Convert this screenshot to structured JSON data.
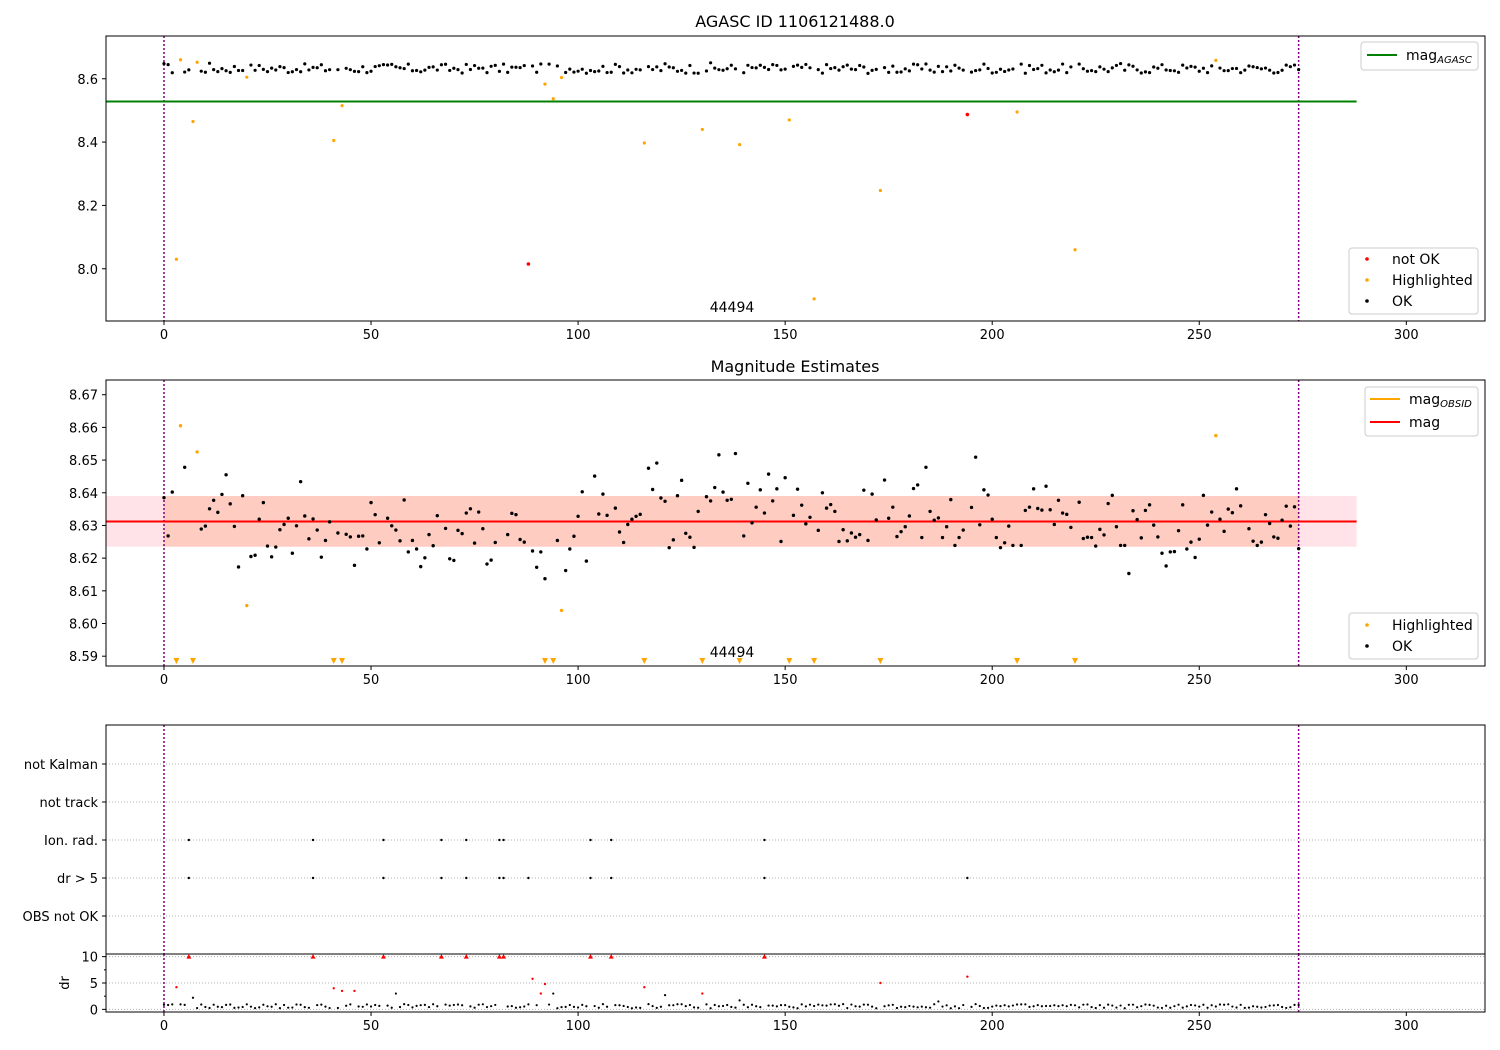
{
  "colors": {
    "ok": "#000000",
    "highlighted": "#ffa500",
    "not_ok": "#ff0000",
    "agasc_line": "#008000",
    "obsid_line": "#ffa500",
    "mag_line": "#ff0000",
    "band_outer": "#ffc0cb",
    "band_inner": "#ffa07a",
    "vline": "#800080",
    "grid": "#b0b0b0"
  },
  "chart_data": [
    {
      "type": "scatter",
      "title": "AGASC ID 1106121488.0",
      "xlim": [
        -14,
        319
      ],
      "ylim": [
        7.835,
        8.735
      ],
      "xticks": [
        0,
        50,
        100,
        150,
        200,
        250,
        300
      ],
      "yticks": [
        "8.0",
        "8.2",
        "8.4",
        "8.6"
      ],
      "annotation": {
        "text": "44494",
        "x": 137,
        "y": 7.87
      },
      "vlines": [
        0,
        274
      ],
      "hline": {
        "name": "mag_AGASC",
        "value": 8.528,
        "x_range": [
          -14,
          288
        ]
      },
      "ok_band": [
        8.61,
        8.65
      ],
      "highlighted_points": [
        [
          3,
          8.03
        ],
        [
          4,
          8.66
        ],
        [
          7,
          8.465
        ],
        [
          8,
          8.652
        ],
        [
          20,
          8.605
        ],
        [
          41,
          8.405
        ],
        [
          43,
          8.515
        ],
        [
          92,
          8.583
        ],
        [
          94,
          8.537
        ],
        [
          96,
          8.604
        ],
        [
          116,
          8.397
        ],
        [
          130,
          8.44
        ],
        [
          139,
          8.392
        ],
        [
          151,
          8.47
        ],
        [
          157,
          7.905
        ],
        [
          173,
          8.247
        ],
        [
          206,
          8.495
        ],
        [
          220,
          8.06
        ],
        [
          254,
          8.658
        ]
      ],
      "not_ok_points": [
        [
          88,
          8.015
        ],
        [
          194,
          8.487
        ]
      ],
      "legend_main": [
        {
          "label": "mag",
          "sub": "AGASC"
        }
      ],
      "legend_points": [
        {
          "label": "not OK"
        },
        {
          "label": "Highlighted"
        },
        {
          "label": "OK"
        }
      ]
    },
    {
      "type": "scatter",
      "title": "Magnitude Estimates",
      "xlim": [
        -14,
        319
      ],
      "ylim": [
        8.587,
        8.6745
      ],
      "xticks": [
        0,
        50,
        100,
        150,
        200,
        250,
        300
      ],
      "yticks": [
        "8.59",
        "8.60",
        "8.61",
        "8.62",
        "8.63",
        "8.64",
        "8.65",
        "8.66",
        "8.67"
      ],
      "annotation": {
        "text": "44494",
        "x": 137,
        "y": 8.5885
      },
      "vlines": [
        0,
        274
      ],
      "mag_line": {
        "value": 8.6312,
        "x_range": [
          -14,
          288
        ]
      },
      "band_outer": {
        "low": 8.6235,
        "high": 8.639,
        "x_range": [
          -14,
          288
        ]
      },
      "band_inner": {
        "low": 8.6235,
        "high": 8.639,
        "x_range": [
          0,
          274
        ]
      },
      "ok_points": [
        [
          0,
          8.6385
        ],
        [
          1,
          8.6268
        ],
        [
          2,
          8.6402
        ],
        [
          5,
          8.6478
        ],
        [
          9,
          8.6289
        ],
        [
          10,
          8.6298
        ],
        [
          11,
          8.6351
        ],
        [
          12,
          8.6377
        ],
        [
          13,
          8.634
        ],
        [
          14,
          8.6395
        ],
        [
          15,
          8.6455
        ],
        [
          16,
          8.6366
        ],
        [
          17,
          8.6297
        ],
        [
          18,
          8.6173
        ],
        [
          19,
          8.6391
        ],
        [
          21,
          8.6205
        ],
        [
          22,
          8.6209
        ],
        [
          23,
          8.6319
        ],
        [
          24,
          8.637
        ],
        [
          25,
          8.6237
        ],
        [
          26,
          8.6204
        ],
        [
          27,
          8.6234
        ],
        [
          28,
          8.6287
        ],
        [
          29,
          8.6303
        ],
        [
          30,
          8.6322
        ],
        [
          31,
          8.6215
        ],
        [
          32,
          8.6299
        ],
        [
          33,
          8.6434
        ],
        [
          34,
          8.6329
        ],
        [
          35,
          8.6259
        ],
        [
          36,
          8.632
        ],
        [
          37,
          8.6286
        ],
        [
          38,
          8.6203
        ],
        [
          39,
          8.6254
        ],
        [
          40,
          8.6311
        ],
        [
          42,
          8.6277
        ],
        [
          44,
          8.6273
        ],
        [
          45,
          8.6265
        ],
        [
          46,
          8.6178
        ],
        [
          47,
          8.6267
        ],
        [
          48,
          8.6268
        ],
        [
          49,
          8.6228
        ],
        [
          50,
          8.637
        ],
        [
          51,
          8.6333
        ],
        [
          52,
          8.6247
        ],
        [
          54,
          8.6322
        ],
        [
          55,
          8.6299
        ],
        [
          56,
          8.6286
        ],
        [
          57,
          8.6253
        ],
        [
          58,
          8.6378
        ],
        [
          59,
          8.6219
        ],
        [
          60,
          8.6254
        ],
        [
          61,
          8.6228
        ],
        [
          62,
          8.6174
        ],
        [
          63,
          8.6201
        ],
        [
          64,
          8.6272
        ],
        [
          65,
          8.6238
        ],
        [
          66,
          8.633
        ],
        [
          68,
          8.6291
        ],
        [
          69,
          8.6198
        ],
        [
          70,
          8.6193
        ],
        [
          71,
          8.6285
        ],
        [
          72,
          8.6275
        ],
        [
          73,
          8.6338
        ],
        [
          74,
          8.6351
        ],
        [
          75,
          8.6246
        ],
        [
          76,
          8.6341
        ],
        [
          77,
          8.629
        ],
        [
          78,
          8.6182
        ],
        [
          79,
          8.6194
        ],
        [
          80,
          8.6248
        ],
        [
          83,
          8.6272
        ],
        [
          84,
          8.6337
        ],
        [
          85,
          8.6333
        ],
        [
          86,
          8.6257
        ],
        [
          87,
          8.6249
        ],
        [
          89,
          8.6222
        ],
        [
          90,
          8.6172
        ],
        [
          91,
          8.6219
        ],
        [
          92,
          8.6137
        ],
        [
          95,
          8.6254
        ],
        [
          97,
          8.6162
        ],
        [
          98,
          8.6228
        ],
        [
          99,
          8.6267
        ],
        [
          100,
          8.6328
        ],
        [
          101,
          8.6403
        ],
        [
          102,
          8.6191
        ],
        [
          104,
          8.6451
        ],
        [
          105,
          8.6335
        ],
        [
          106,
          8.6396
        ],
        [
          107,
          8.6331
        ],
        [
          109,
          8.6353
        ],
        [
          110,
          8.628
        ],
        [
          111,
          8.6248
        ],
        [
          112,
          8.6303
        ],
        [
          113,
          8.6319
        ],
        [
          114,
          8.6328
        ],
        [
          115,
          8.6334
        ],
        [
          117,
          8.6475
        ],
        [
          118,
          8.641
        ],
        [
          119,
          8.6491
        ],
        [
          120,
          8.6384
        ],
        [
          121,
          8.6374
        ],
        [
          122,
          8.6232
        ],
        [
          123,
          8.6256
        ],
        [
          124,
          8.6391
        ],
        [
          125,
          8.6438
        ],
        [
          126,
          8.6276
        ],
        [
          127,
          8.6264
        ],
        [
          128,
          8.6233
        ],
        [
          129,
          8.6343
        ],
        [
          131,
          8.6388
        ],
        [
          132,
          8.6375
        ],
        [
          133,
          8.6416
        ],
        [
          134,
          8.6516
        ],
        [
          135,
          8.6402
        ],
        [
          136,
          8.6377
        ],
        [
          137,
          8.638
        ],
        [
          138,
          8.652
        ],
        [
          140,
          8.6268
        ],
        [
          141,
          8.6429
        ],
        [
          142,
          8.6308
        ],
        [
          143,
          8.6356
        ],
        [
          144,
          8.6409
        ],
        [
          145,
          8.6338
        ],
        [
          146,
          8.6457
        ],
        [
          147,
          8.6375
        ],
        [
          148,
          8.6412
        ],
        [
          149,
          8.6251
        ],
        [
          150,
          8.6446
        ],
        [
          152,
          8.6331
        ],
        [
          153,
          8.6411
        ],
        [
          154,
          8.6362
        ],
        [
          155,
          8.6305
        ],
        [
          156,
          8.6325
        ],
        [
          158,
          8.6285
        ],
        [
          159,
          8.64
        ],
        [
          160,
          8.6353
        ],
        [
          161,
          8.6364
        ],
        [
          162,
          8.6343
        ],
        [
          163,
          8.6251
        ],
        [
          164,
          8.6287
        ],
        [
          165,
          8.6253
        ],
        [
          166,
          8.6277
        ],
        [
          167,
          8.6264
        ],
        [
          168,
          8.6272
        ],
        [
          169,
          8.6408
        ],
        [
          170,
          8.6254
        ],
        [
          171,
          8.6396
        ],
        [
          172,
          8.6317
        ],
        [
          174,
          8.6439
        ],
        [
          175,
          8.6322
        ],
        [
          176,
          8.6356
        ],
        [
          177,
          8.6266
        ],
        [
          178,
          8.6281
        ],
        [
          179,
          8.6296
        ],
        [
          180,
          8.6329
        ],
        [
          181,
          8.6413
        ],
        [
          182,
          8.6424
        ],
        [
          183,
          8.6263
        ],
        [
          184,
          8.6478
        ],
        [
          185,
          8.6343
        ],
        [
          186,
          8.6316
        ],
        [
          187,
          8.6323
        ],
        [
          188,
          8.6263
        ],
        [
          189,
          8.6296
        ],
        [
          190,
          8.6379
        ],
        [
          191,
          8.6239
        ],
        [
          192,
          8.6263
        ],
        [
          193,
          8.6286
        ],
        [
          195,
          8.6355
        ],
        [
          196,
          8.6509
        ],
        [
          197,
          8.6302
        ],
        [
          198,
          8.6409
        ],
        [
          199,
          8.6393
        ],
        [
          200,
          8.6319
        ],
        [
          201,
          8.6263
        ],
        [
          202,
          8.6232
        ],
        [
          203,
          8.6247
        ],
        [
          204,
          8.6298
        ],
        [
          205,
          8.6239
        ],
        [
          207,
          8.6239
        ],
        [
          208,
          8.6346
        ],
        [
          209,
          8.6356
        ],
        [
          210,
          8.6412
        ],
        [
          211,
          8.6352
        ],
        [
          212,
          8.6347
        ],
        [
          213,
          8.642
        ],
        [
          214,
          8.6348
        ],
        [
          215,
          8.6303
        ],
        [
          216,
          8.6377
        ],
        [
          217,
          8.6338
        ],
        [
          218,
          8.6334
        ],
        [
          219,
          8.6294
        ],
        [
          221,
          8.6371
        ],
        [
          222,
          8.626
        ],
        [
          223,
          8.6264
        ],
        [
          224,
          8.6263
        ],
        [
          225,
          8.6237
        ],
        [
          226,
          8.6288
        ],
        [
          227,
          8.6271
        ],
        [
          228,
          8.6367
        ],
        [
          229,
          8.6392
        ],
        [
          230,
          8.6296
        ],
        [
          231,
          8.6239
        ],
        [
          232,
          8.6239
        ],
        [
          233,
          8.6153
        ],
        [
          234,
          8.6345
        ],
        [
          235,
          8.6318
        ],
        [
          236,
          8.6262
        ],
        [
          237,
          8.6346
        ],
        [
          238,
          8.6363
        ],
        [
          239,
          8.6301
        ],
        [
          240,
          8.6265
        ],
        [
          241,
          8.6215
        ],
        [
          242,
          8.6176
        ],
        [
          243,
          8.6219
        ],
        [
          244,
          8.622
        ],
        [
          245,
          8.6284
        ],
        [
          246,
          8.6363
        ],
        [
          247,
          8.6228
        ],
        [
          248,
          8.6249
        ],
        [
          249,
          8.6202
        ],
        [
          250,
          8.6258
        ],
        [
          251,
          8.6392
        ],
        [
          252,
          8.6301
        ],
        [
          253,
          8.6341
        ],
        [
          255,
          8.6319
        ],
        [
          256,
          8.6282
        ],
        [
          257,
          8.635
        ],
        [
          258,
          8.6339
        ],
        [
          259,
          8.6412
        ],
        [
          260,
          8.636
        ],
        [
          262,
          8.629
        ],
        [
          263,
          8.6252
        ],
        [
          264,
          8.6239
        ],
        [
          265,
          8.6249
        ],
        [
          266,
          8.6333
        ],
        [
          267,
          8.6306
        ],
        [
          268,
          8.6265
        ],
        [
          269,
          8.6261
        ],
        [
          270,
          8.6316
        ],
        [
          271,
          8.6359
        ],
        [
          272,
          8.6298
        ],
        [
          273,
          8.6357
        ],
        [
          274,
          8.6229
        ]
      ],
      "highlighted_points": [
        [
          4,
          8.6605
        ],
        [
          8,
          8.6525
        ],
        [
          20,
          8.6055
        ],
        [
          96,
          8.604
        ],
        [
          254,
          8.6575
        ]
      ],
      "triangle_markers_x": [
        3,
        7,
        41,
        43,
        92,
        94,
        116,
        130,
        139,
        151,
        157,
        173,
        206,
        220
      ],
      "legend_main": [
        {
          "label": "mag",
          "sub": "OBSID"
        },
        {
          "label": "mag"
        }
      ],
      "legend_points": [
        {
          "label": "Highlighted"
        },
        {
          "label": "OK"
        }
      ]
    },
    {
      "type": "scatter",
      "title": "",
      "xlim": [
        -14,
        319
      ],
      "vlines": [
        0,
        274
      ],
      "flag_labels": [
        "not Kalman",
        "not track",
        "Ion. rad.",
        "dr > 5",
        "OBS not OK"
      ],
      "flags": {
        "not Kalman": [],
        "not track": [],
        "Ion. rad.": [
          6,
          36,
          53,
          67,
          73,
          81,
          82,
          103,
          108,
          145
        ],
        "dr > 5": [
          6,
          36,
          53,
          67,
          73,
          81,
          82,
          88,
          103,
          108,
          145,
          194
        ],
        "OBS not OK": []
      }
    },
    {
      "type": "scatter",
      "ylabel": "dr",
      "xlim": [
        -14,
        319
      ],
      "ylim": [
        -0.5,
        10.5
      ],
      "xticks": [
        0,
        50,
        100,
        150,
        200,
        250,
        300
      ],
      "yticks": [
        "0",
        "5",
        "10"
      ],
      "vlines": [
        0,
        274
      ],
      "clip_value": 10,
      "red_points": [
        [
          3,
          4.2
        ],
        [
          41,
          4.0
        ],
        [
          43,
          3.5
        ],
        [
          46,
          3.5
        ],
        [
          89,
          5.8
        ],
        [
          91,
          3.0
        ],
        [
          92,
          4.8
        ],
        [
          116,
          4.2
        ],
        [
          130,
          3.0
        ],
        [
          173,
          5.0
        ],
        [
          194,
          6.2
        ]
      ],
      "red_triangles_x": [
        6,
        36,
        53,
        67,
        73,
        81,
        82,
        103,
        108,
        145
      ],
      "black_points": [
        [
          7,
          2.2
        ],
        [
          56,
          3.0
        ],
        [
          94,
          3.0
        ],
        [
          121,
          2.7
        ],
        [
          139,
          1.7
        ],
        [
          187,
          1.5
        ]
      ],
      "baseline": {
        "start": 0,
        "end": 274,
        "base": 0.6,
        "amp": 0.4
      }
    }
  ]
}
